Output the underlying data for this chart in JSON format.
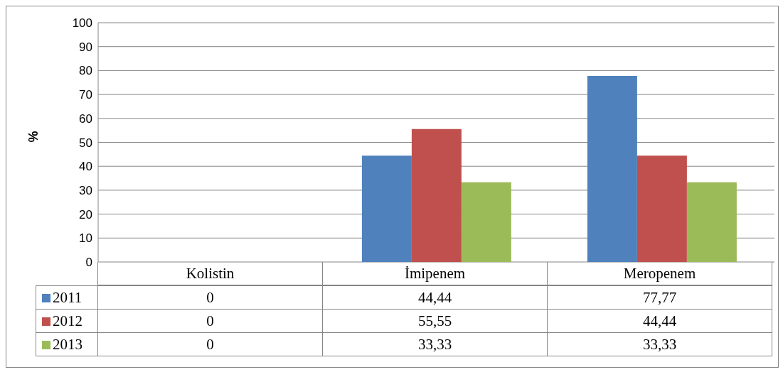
{
  "chart_data": {
    "type": "bar",
    "ylabel": "%",
    "categories": [
      "Kolistin",
      "İmipenem",
      "Meropenem"
    ],
    "series": [
      {
        "name": "2011",
        "color": "#4f81bd",
        "values": [
          0,
          44.44,
          77.77
        ],
        "value_labels": [
          "0",
          "44,44",
          "77,77"
        ]
      },
      {
        "name": "2012",
        "color": "#c0504d",
        "values": [
          0,
          55.55,
          44.44
        ],
        "value_labels": [
          "0",
          "55,55",
          "44,44"
        ]
      },
      {
        "name": "2013",
        "color": "#9bbb59",
        "values": [
          0,
          33.33,
          33.33
        ],
        "value_labels": [
          "0",
          "33,33",
          "33,33"
        ]
      }
    ],
    "ylim": [
      0,
      100
    ],
    "yticks": [
      0,
      10,
      20,
      30,
      40,
      50,
      60,
      70,
      80,
      90,
      100
    ],
    "grid": "y",
    "legend": "bottom left"
  }
}
